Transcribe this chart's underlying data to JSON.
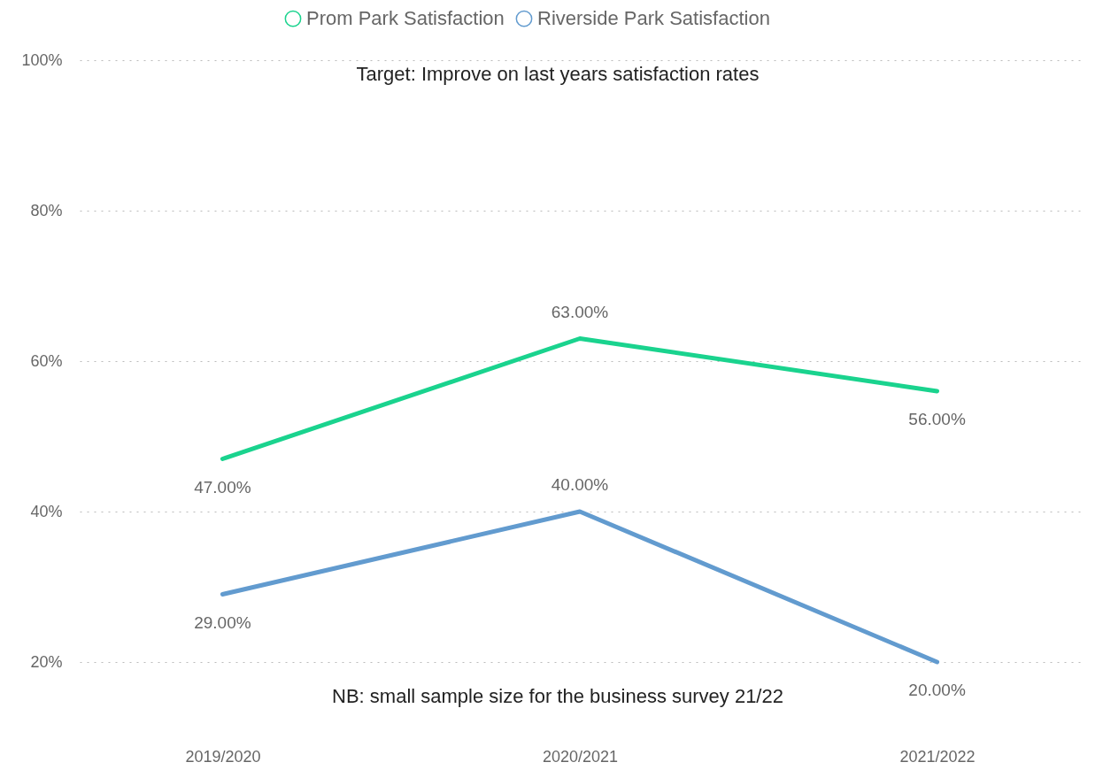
{
  "chart_data": {
    "type": "line",
    "categories": [
      "2019/2020",
      "2020/2021",
      "2021/2022"
    ],
    "series": [
      {
        "name": "Prom Park Satisfaction",
        "color": "#1ad38e",
        "values": [
          47,
          63,
          56
        ],
        "value_labels": [
          "47.00%",
          "63.00%",
          "56.00%"
        ]
      },
      {
        "name": "Riverside Park Satisfaction",
        "color": "#629bcf",
        "values": [
          29,
          40,
          20
        ],
        "value_labels": [
          "29.00%",
          "40.00%",
          "20.00%"
        ]
      }
    ],
    "ylim": [
      20,
      100
    ],
    "yticks": [
      {
        "value": 20,
        "label": "20%"
      },
      {
        "value": 40,
        "label": "40%"
      },
      {
        "value": 60,
        "label": "60%"
      },
      {
        "value": 80,
        "label": "80%"
      },
      {
        "value": 100,
        "label": "100%"
      }
    ],
    "grid": "y",
    "legend": "top",
    "marker": "none",
    "line_style": "solid",
    "annotations": [
      "Target: Improve on last years satisfaction rates",
      "NB: small sample size for the business survey  21/22"
    ]
  }
}
